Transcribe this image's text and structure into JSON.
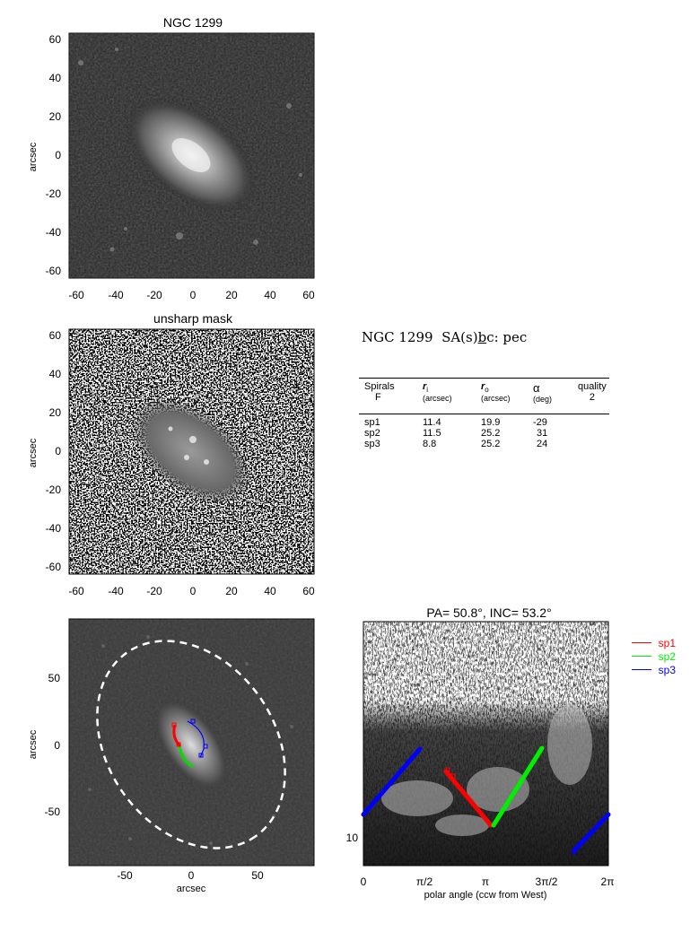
{
  "panels": {
    "image_title": "NGC 1299",
    "mask_title": "unsharp mask",
    "axis_label_arcsec": "arcsec",
    "xticks_top": [
      "-60",
      "-40",
      "-20",
      "0",
      "20",
      "40",
      "60"
    ],
    "yticks_top": [
      "60",
      "40",
      "20",
      "0",
      "-20",
      "-40",
      "-60"
    ],
    "xticks_deproj": [
      "-50",
      "0",
      "50"
    ],
    "yticks_deproj": [
      "50",
      "0",
      "-50"
    ],
    "polar_title": "PA=  50.8°, INC=  53.2°",
    "polar_xlabel": "polar angle (ccw from West)",
    "polar_xticks": [
      "0",
      "π/2",
      "π",
      "3π/2",
      "2π"
    ],
    "polar_ytick": "10"
  },
  "galaxy": {
    "name": "NGC 1299",
    "classification_prefix": "SA(s)",
    "classification_underlined": "b",
    "classification_suffix": "c:  pec"
  },
  "table": {
    "col1": "Spirals",
    "col1_sub": "F",
    "col2": "r",
    "col2_sub_letter": "i",
    "col2_unit": "(arcsec)",
    "col3": "r",
    "col3_sub_letter": "o",
    "col3_unit": "(arcsec)",
    "col4": "α",
    "col4_unit": "(deg)",
    "col5": "quality",
    "col5_value": "2",
    "rows": [
      {
        "name": "sp1",
        "ri": "11.4",
        "ro": "19.9",
        "alpha": "-29"
      },
      {
        "name": "sp2",
        "ri": "11.5",
        "ro": "25.2",
        "alpha": "31"
      },
      {
        "name": "sp3",
        "ri": "8.8",
        "ro": "25.2",
        "alpha": "24"
      }
    ]
  },
  "legend": [
    {
      "label": "sp1",
      "color": "#ff0000"
    },
    {
      "label": "sp2",
      "color": "#00ee00"
    },
    {
      "label": "sp3",
      "color": "#0000ff"
    }
  ]
}
